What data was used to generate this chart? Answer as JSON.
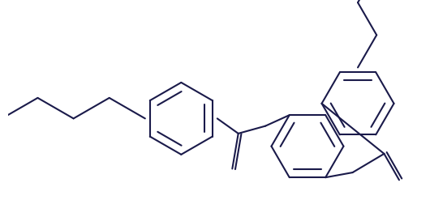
{
  "bg_color": "#ffffff",
  "line_color": "#1a1a4a",
  "line_width": 1.5,
  "fig_width": 5.3,
  "fig_height": 2.52,
  "dpi": 100,
  "xlim": [
    0.0,
    5.3
  ],
  "ylim": [
    0.0,
    2.52
  ]
}
